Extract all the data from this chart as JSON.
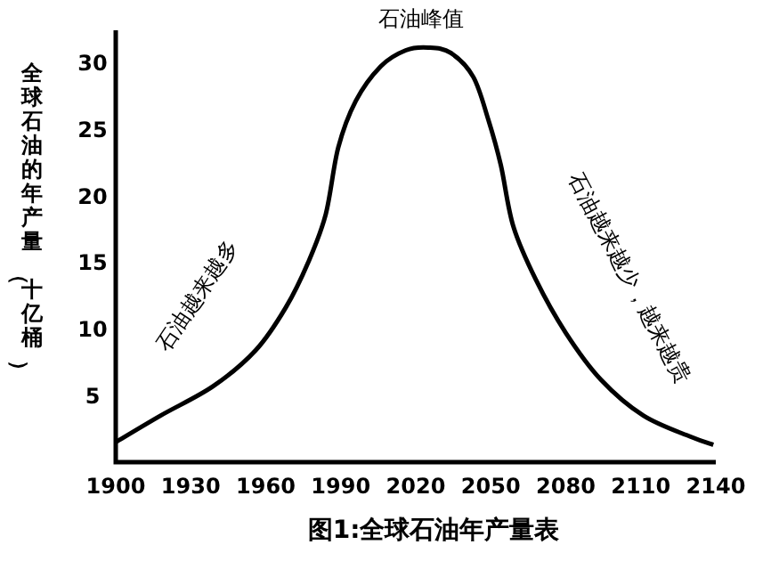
{
  "chart_data": {
    "type": "line",
    "title": "图1:全球石油年产量表",
    "ylabel": "全球石油的年产量（十亿桶）",
    "x": [
      1900,
      1918,
      1939,
      1956,
      1968,
      1977,
      1984,
      1989,
      1996,
      2006,
      2016,
      2025,
      2034,
      2043,
      2049,
      2054,
      2059,
      2068,
      2080,
      2094,
      2111,
      2130,
      2139
    ],
    "values": [
      1.5,
      3.5,
      5.7,
      8.4,
      11.6,
      15.0,
      18.6,
      23.6,
      27.1,
      29.7,
      30.9,
      31.1,
      30.7,
      28.9,
      25.7,
      22.3,
      17.7,
      13.7,
      9.7,
      6.2,
      3.5,
      1.9,
      1.3
    ],
    "color": "#000000",
    "xlim": [
      1900,
      2140
    ],
    "xticks": [
      1900,
      1930,
      1960,
      1990,
      2020,
      2050,
      2080,
      2110,
      2140
    ],
    "ylim": [
      0,
      32.4
    ],
    "yticks": [
      5,
      10,
      15,
      20,
      25,
      30
    ],
    "grid": false,
    "marker": "none",
    "line_style": "solid",
    "annotations": [
      {
        "text": "石油峰值",
        "x": 2022,
        "y": 31.1
      },
      "石油越来越多",
      "石油越来越少，越来越贵"
    ]
  }
}
